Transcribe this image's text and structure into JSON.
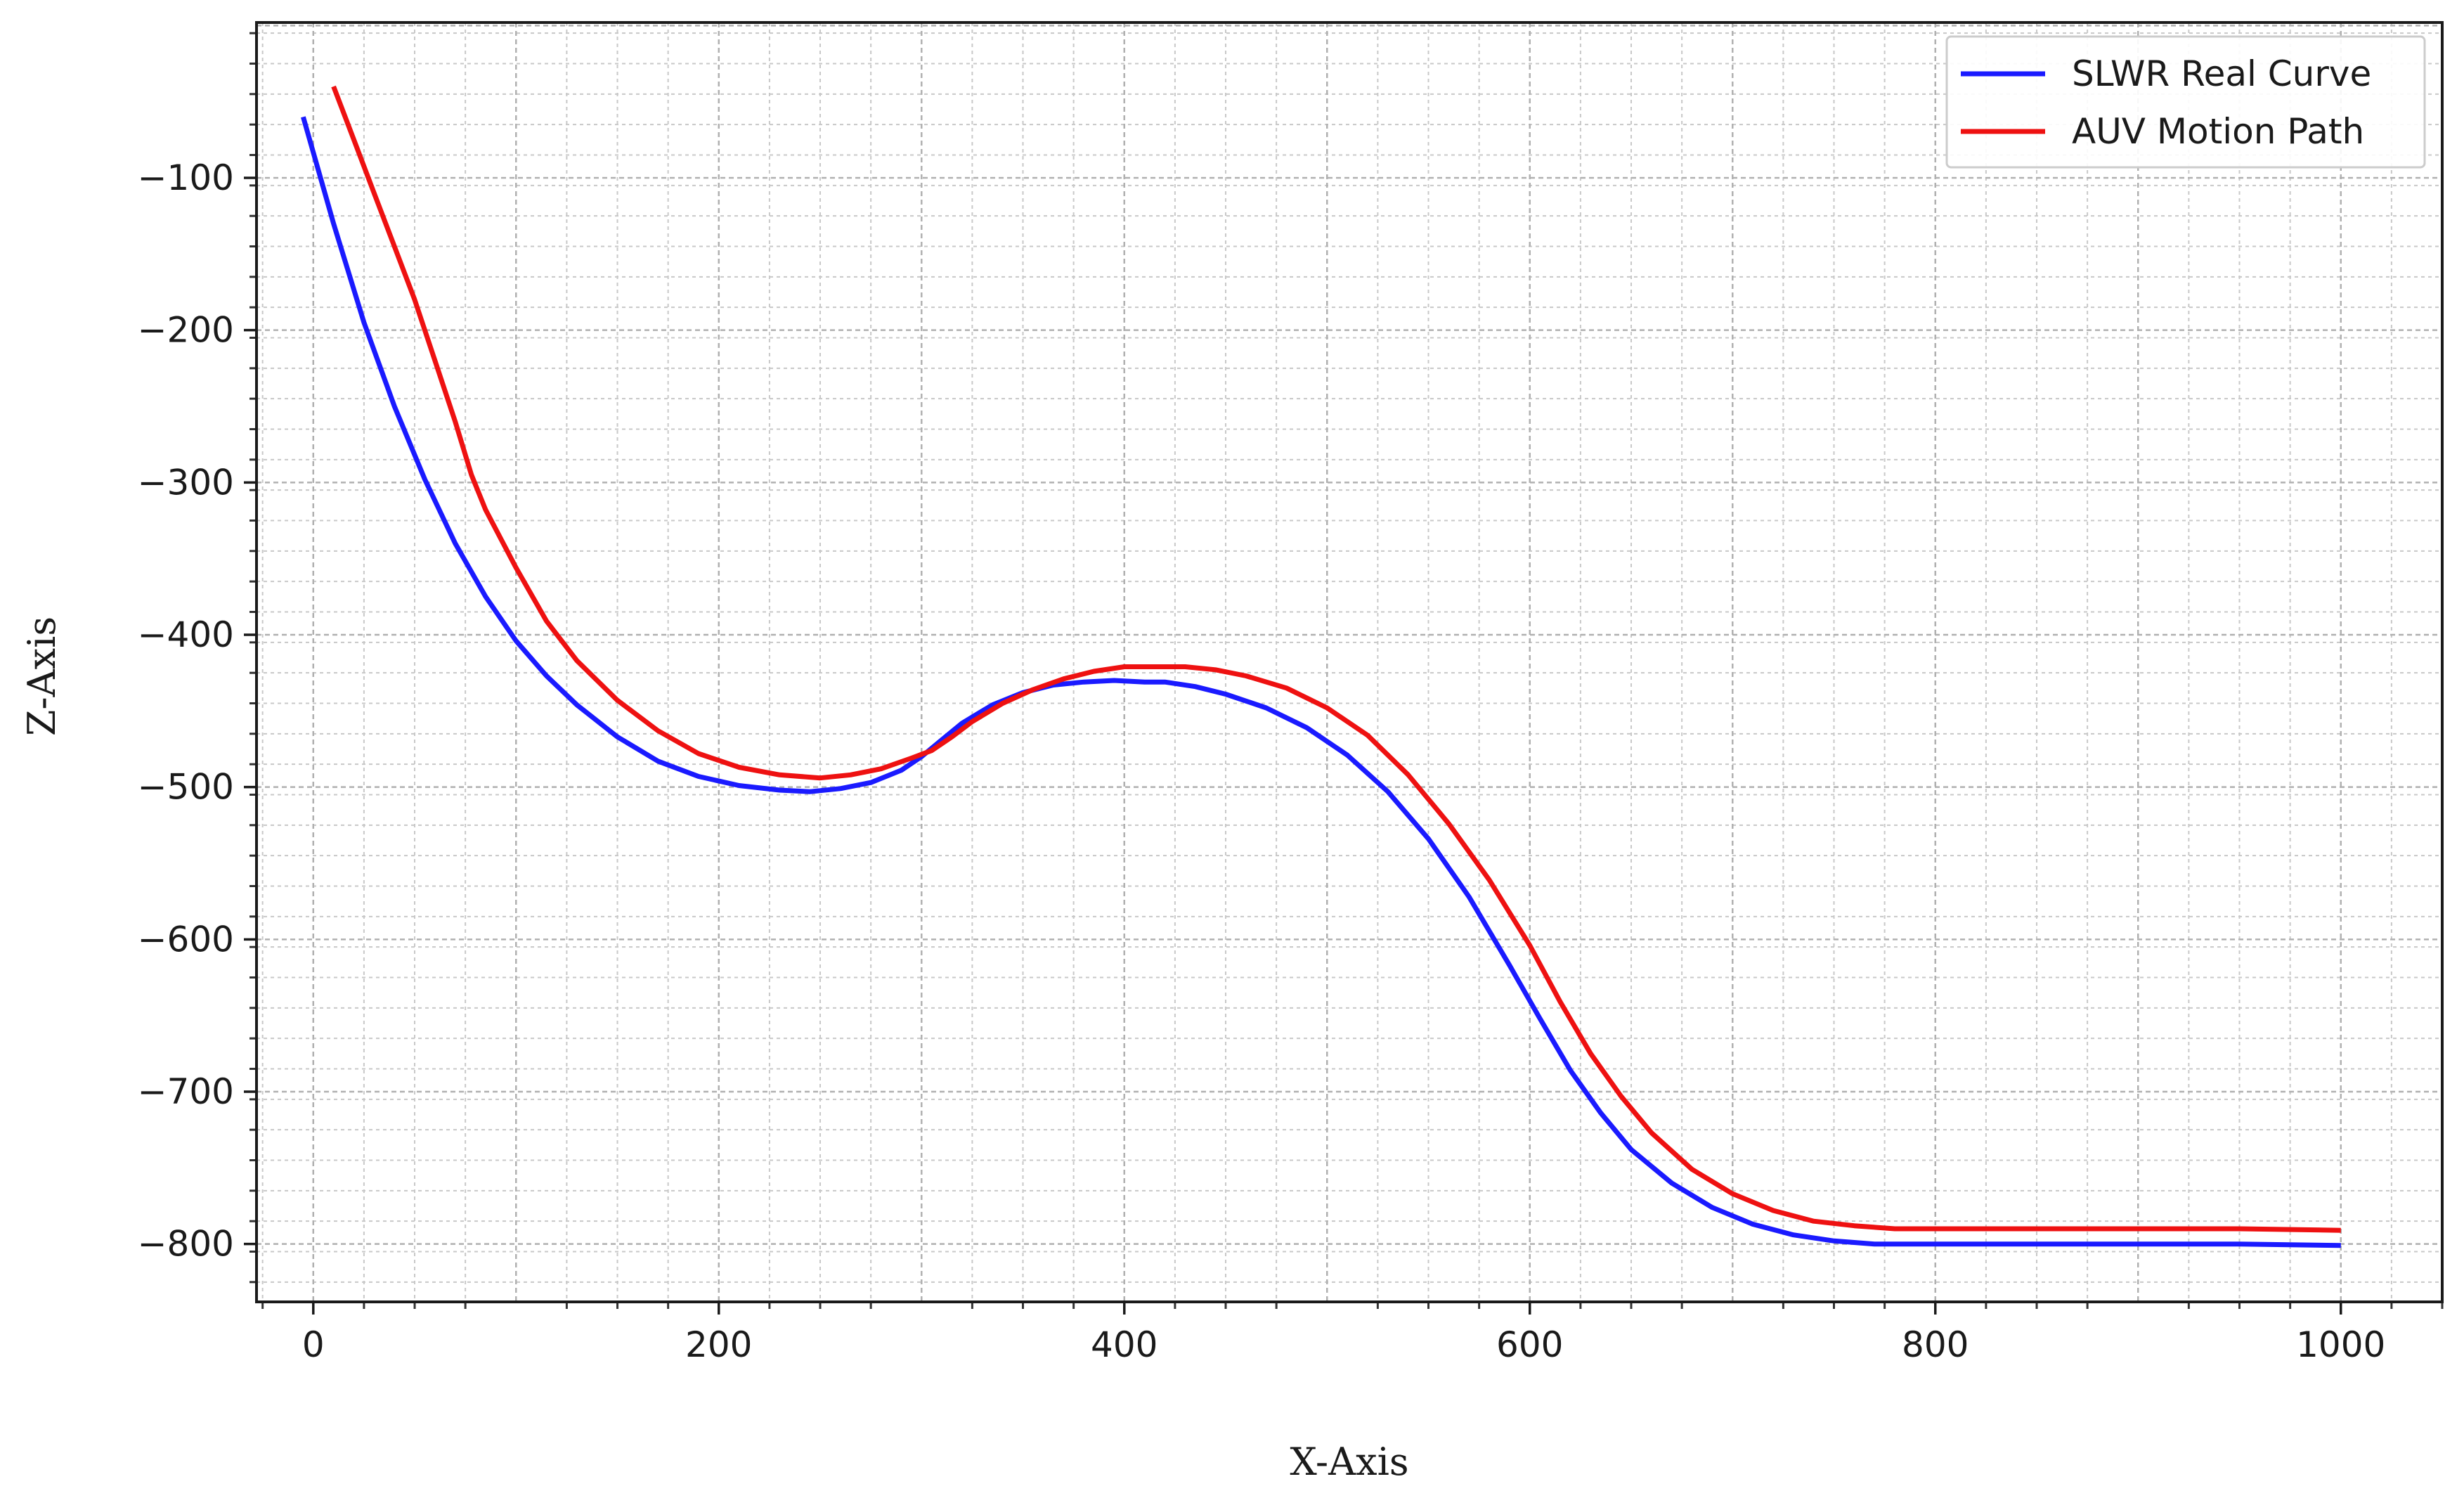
{
  "chart_data": {
    "type": "line",
    "title": "",
    "xlabel": "X-Axis",
    "ylabel": "Z-Axis",
    "xlim": [
      -28,
      1050
    ],
    "ylim": [
      -838,
      2
    ],
    "xticks": [
      0,
      200,
      400,
      600,
      800,
      1000
    ],
    "yticks": [
      -100,
      -200,
      -300,
      -400,
      -500,
      -600,
      -700,
      -800
    ],
    "grid": true,
    "legend_position": "top-right",
    "series": [
      {
        "name": "SLWR Real Curve",
        "color": "#1a1aff",
        "x": [
          -5,
          10,
          25,
          40,
          55,
          70,
          85,
          100,
          115,
          130,
          150,
          170,
          190,
          210,
          230,
          245,
          260,
          275,
          290,
          300,
          310,
          320,
          335,
          350,
          365,
          380,
          395,
          410,
          420,
          435,
          450,
          470,
          490,
          510,
          530,
          550,
          570,
          590,
          605,
          620,
          635,
          650,
          670,
          690,
          710,
          730,
          750,
          770,
          790,
          810,
          850,
          900,
          950,
          1000
        ],
        "y": [
          -60,
          -130,
          -195,
          -250,
          -298,
          -340,
          -375,
          -404,
          -427,
          -446,
          -467,
          -483,
          -493,
          -499,
          -502,
          -503,
          -501,
          -497,
          -489,
          -480,
          -469,
          -458,
          -446,
          -438,
          -433,
          -431,
          -430,
          -431,
          -431,
          -434,
          -439,
          -448,
          -461,
          -479,
          -503,
          -534,
          -572,
          -617,
          -652,
          -686,
          -714,
          -738,
          -760,
          -776,
          -787,
          -794,
          -798,
          -800,
          -800,
          -800,
          -800,
          -800,
          -800,
          -801
        ]
      },
      {
        "name": "AUV Motion Path",
        "color": "#ee1111",
        "x": [
          10,
          20,
          30,
          40,
          50,
          60,
          70,
          78,
          85,
          100,
          115,
          130,
          150,
          170,
          190,
          210,
          230,
          250,
          265,
          280,
          295,
          305,
          315,
          325,
          340,
          355,
          370,
          385,
          400,
          415,
          430,
          445,
          460,
          480,
          500,
          520,
          540,
          560,
          580,
          600,
          615,
          630,
          645,
          660,
          680,
          700,
          720,
          740,
          760,
          780,
          800,
          850,
          900,
          950,
          1000
        ],
        "y": [
          -40,
          -75,
          -110,
          -145,
          -180,
          -220,
          -260,
          -295,
          -318,
          -356,
          -391,
          -417,
          -443,
          -463,
          -478,
          -487,
          -492,
          -494,
          -492,
          -488,
          -481,
          -476,
          -467,
          -457,
          -445,
          -436,
          -429,
          -424,
          -421,
          -421,
          -421,
          -423,
          -427,
          -435,
          -448,
          -466,
          -492,
          -524,
          -561,
          -604,
          -641,
          -675,
          -703,
          -727,
          -751,
          -767,
          -778,
          -785,
          -788,
          -790,
          -790,
          -790,
          -790,
          -790,
          -791
        ]
      }
    ]
  }
}
